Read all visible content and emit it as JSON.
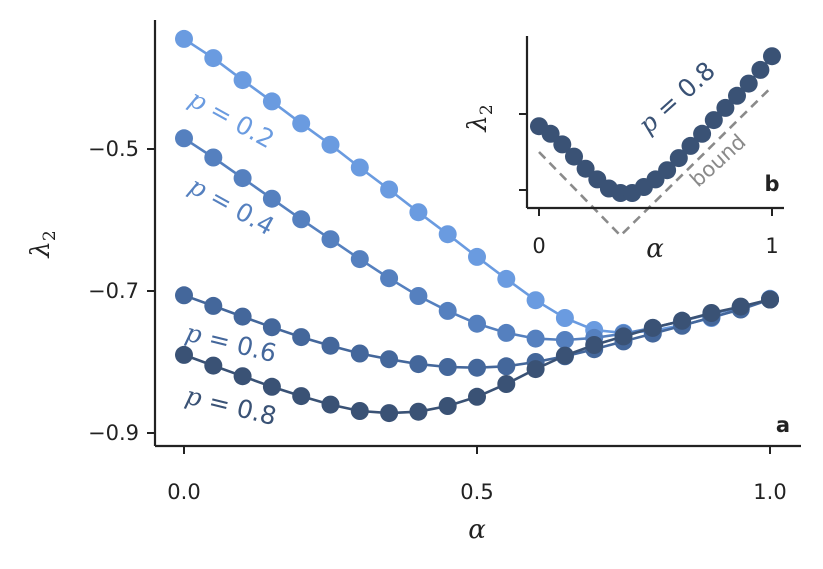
{
  "chart_data": [
    {
      "panel": "a",
      "type": "line",
      "xlabel": "α",
      "ylabel": "λ2",
      "xlim": [
        -0.05,
        1.05
      ],
      "ylim": [
        -0.92,
        -0.32
      ],
      "xticks": [
        "0.0",
        "0.5",
        "1.0"
      ],
      "xtick_values": [
        0,
        0.5,
        1
      ],
      "yticks": [
        "−0.5",
        "−0.7",
        "−0.9"
      ],
      "ytick_values": [
        -0.5,
        -0.7,
        -0.9
      ],
      "x": [
        0,
        0.05,
        0.1,
        0.15,
        0.2,
        0.25,
        0.3,
        0.35,
        0.4,
        0.45,
        0.5,
        0.55,
        0.6,
        0.65,
        0.7,
        0.75,
        0.8,
        0.85,
        0.9,
        0.95,
        1.0
      ],
      "series": [
        {
          "name": "p = 0.2",
          "color": "#6a9be0",
          "values": [
            -0.345,
            -0.372,
            -0.403,
            -0.433,
            -0.464,
            -0.494,
            -0.526,
            -0.557,
            -0.589,
            -0.62,
            -0.652,
            -0.683,
            -0.713,
            -0.738,
            -0.755,
            -0.759,
            -0.756,
            -0.748,
            -0.738,
            -0.725,
            -0.711
          ]
        },
        {
          "name": "p = 0.4",
          "color": "#5580bf",
          "values": [
            -0.485,
            -0.512,
            -0.541,
            -0.57,
            -0.599,
            -0.627,
            -0.655,
            -0.682,
            -0.707,
            -0.728,
            -0.746,
            -0.759,
            -0.767,
            -0.769,
            -0.766,
            -0.76,
            -0.752,
            -0.742,
            -0.732,
            -0.723,
            -0.712
          ]
        },
        {
          "name": "p = 0.6",
          "color": "#44679b",
          "values": [
            -0.706,
            -0.721,
            -0.736,
            -0.751,
            -0.765,
            -0.777,
            -0.788,
            -0.796,
            -0.803,
            -0.807,
            -0.808,
            -0.806,
            -0.8,
            -0.792,
            -0.782,
            -0.771,
            -0.76,
            -0.749,
            -0.737,
            -0.726,
            -0.712
          ]
        },
        {
          "name": "p = 0.8",
          "color": "#3a5275",
          "values": [
            -0.79,
            -0.805,
            -0.82,
            -0.835,
            -0.848,
            -0.86,
            -0.869,
            -0.872,
            -0.87,
            -0.862,
            -0.849,
            -0.831,
            -0.81,
            -0.791,
            -0.776,
            -0.764,
            -0.752,
            -0.742,
            -0.731,
            -0.722,
            -0.712
          ]
        }
      ]
    },
    {
      "panel": "b",
      "type": "line",
      "xlabel": "α",
      "ylabel": "λ2",
      "xlim": [
        -0.05,
        1.05
      ],
      "ylim": [
        -0.85,
        0.45
      ],
      "xticks": [
        "0",
        "1"
      ],
      "xtick_values": [
        0,
        1
      ],
      "x": [
        0,
        0.05,
        0.1,
        0.15,
        0.2,
        0.25,
        0.3,
        0.35,
        0.4,
        0.45,
        0.5,
        0.55,
        0.6,
        0.65,
        0.7,
        0.75,
        0.8,
        0.85,
        0.9,
        0.95,
        1.0
      ],
      "series": [
        {
          "name": "p = 0.8",
          "color": "#3a5275",
          "values": [
            -0.08,
            -0.13,
            -0.2,
            -0.28,
            -0.36,
            -0.43,
            -0.49,
            -0.52,
            -0.52,
            -0.48,
            -0.43,
            -0.37,
            -0.29,
            -0.21,
            -0.13,
            -0.04,
            0.04,
            0.12,
            0.2,
            0.29,
            0.38
          ]
        },
        {
          "name": "bound",
          "color": "#8a8a8a",
          "style": "dashed",
          "x": [
            0,
            0.35,
            1.0
          ],
          "values": [
            -0.25,
            -0.8,
            0.18
          ]
        }
      ]
    }
  ]
}
